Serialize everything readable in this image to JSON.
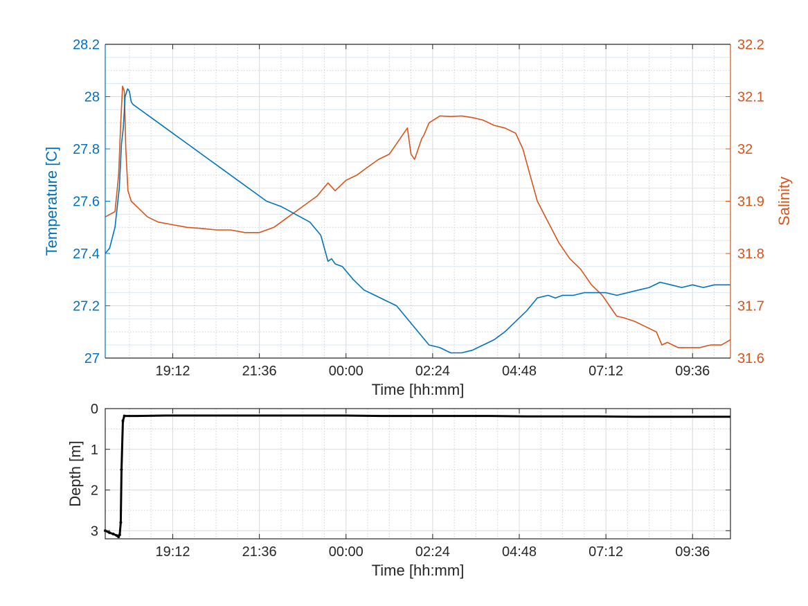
{
  "chart_data": [
    {
      "type": "line",
      "title": "",
      "xlabel": "Time [hh:mm]",
      "x_ticks": [
        "19:12",
        "21:36",
        "00:00",
        "02:24",
        "04:48",
        "07:12",
        "09:36"
      ],
      "x_range_hours": [
        17.33,
        34.65
      ],
      "x_tick_hours": [
        19.2,
        21.6,
        24.0,
        26.4,
        28.8,
        31.2,
        33.6
      ],
      "grid": true,
      "y_left": {
        "label": "Temperature [C]",
        "ylim": [
          27,
          28.2
        ],
        "ticks": [
          "27",
          "27.2",
          "27.4",
          "27.6",
          "27.8",
          "28",
          "28.2"
        ],
        "color": "#0072BD"
      },
      "y_right": {
        "label": "Salinity",
        "ylim": [
          31.6,
          32.2
        ],
        "ticks": [
          "31.6",
          "31.7",
          "31.8",
          "31.9",
          "32",
          "32.1",
          "32.2"
        ],
        "color": "#D95319"
      },
      "series": [
        {
          "axis": "left",
          "color": "#0072BD",
          "x": [
            17.33,
            17.45,
            17.6,
            17.72,
            17.78,
            17.83,
            17.88,
            17.95,
            18.0,
            18.05,
            18.1,
            18.3,
            18.6,
            19.0,
            19.4,
            19.8,
            20.2,
            20.6,
            21.0,
            21.4,
            21.8,
            22.2,
            22.6,
            23.0,
            23.3,
            23.4,
            23.5,
            23.6,
            23.7,
            23.9,
            24.2,
            24.5,
            24.8,
            25.1,
            25.4,
            25.7,
            26.0,
            26.3,
            26.6,
            26.9,
            27.2,
            27.5,
            27.8,
            28.1,
            28.4,
            28.7,
            29.0,
            29.3,
            29.6,
            29.8,
            30.0,
            30.3,
            30.6,
            30.9,
            31.2,
            31.5,
            31.8,
            32.1,
            32.4,
            32.7,
            33.0,
            33.3,
            33.6,
            33.9,
            34.2,
            34.65
          ],
          "y": [
            27.4,
            27.42,
            27.5,
            27.65,
            27.82,
            27.88,
            28.0,
            28.03,
            28.02,
            27.98,
            27.97,
            27.95,
            27.92,
            27.88,
            27.84,
            27.8,
            27.76,
            27.72,
            27.68,
            27.64,
            27.6,
            27.58,
            27.55,
            27.52,
            27.47,
            27.42,
            27.37,
            27.38,
            27.36,
            27.35,
            27.3,
            27.26,
            27.24,
            27.22,
            27.2,
            27.15,
            27.1,
            27.05,
            27.04,
            27.02,
            27.02,
            27.03,
            27.05,
            27.07,
            27.1,
            27.14,
            27.18,
            27.23,
            27.24,
            27.23,
            27.24,
            27.24,
            27.25,
            27.25,
            27.25,
            27.24,
            27.25,
            27.26,
            27.27,
            27.29,
            27.28,
            27.27,
            27.28,
            27.27,
            27.28,
            27.28
          ]
        },
        {
          "axis": "right",
          "color": "#D95319",
          "x": [
            17.33,
            17.6,
            17.7,
            17.76,
            17.81,
            17.86,
            17.9,
            17.96,
            18.05,
            18.2,
            18.5,
            18.8,
            19.2,
            19.6,
            20.0,
            20.4,
            20.8,
            21.2,
            21.6,
            22.0,
            22.4,
            22.8,
            23.2,
            23.5,
            23.7,
            24.0,
            24.3,
            24.6,
            24.9,
            25.2,
            25.5,
            25.7,
            25.8,
            25.9,
            26.0,
            26.1,
            26.15,
            26.3,
            26.6,
            26.9,
            27.2,
            27.5,
            27.8,
            28.1,
            28.4,
            28.7,
            28.9,
            29.1,
            29.3,
            29.6,
            29.9,
            30.2,
            30.5,
            30.8,
            31.1,
            31.3,
            31.5,
            31.7,
            32.0,
            32.3,
            32.6,
            32.75,
            32.9,
            33.2,
            33.5,
            33.8,
            34.1,
            34.4,
            34.65
          ],
          "y": [
            31.87,
            31.88,
            31.95,
            32.05,
            32.12,
            32.11,
            32.0,
            31.92,
            31.9,
            31.89,
            31.87,
            31.86,
            31.855,
            31.85,
            31.848,
            31.845,
            31.845,
            31.84,
            31.84,
            31.85,
            31.87,
            31.89,
            31.91,
            31.935,
            31.92,
            31.94,
            31.95,
            31.965,
            31.98,
            31.99,
            32.02,
            32.04,
            31.99,
            31.98,
            32.0,
            32.02,
            32.025,
            32.05,
            32.063,
            32.062,
            32.063,
            32.06,
            32.055,
            32.045,
            32.04,
            32.03,
            32.0,
            31.95,
            31.9,
            31.86,
            31.82,
            31.79,
            31.77,
            31.74,
            31.72,
            31.7,
            31.68,
            31.677,
            31.67,
            31.66,
            31.65,
            31.625,
            31.63,
            31.62,
            31.62,
            31.62,
            31.625,
            31.625,
            31.635
          ]
        }
      ]
    },
    {
      "type": "line",
      "title": "",
      "xlabel": "Time [hh:mm]",
      "ylabel": "Depth [m]",
      "x_ticks": [
        "19:12",
        "21:36",
        "00:00",
        "02:24",
        "04:48",
        "07:12",
        "09:36"
      ],
      "x_range_hours": [
        17.33,
        34.65
      ],
      "x_tick_hours": [
        19.2,
        21.6,
        24.0,
        26.4,
        28.8,
        31.2,
        33.6
      ],
      "ylim": [
        0,
        3.2
      ],
      "y_reversed": true,
      "y_ticks": [
        "0",
        "1",
        "2",
        "3"
      ],
      "grid": true,
      "series": [
        {
          "color": "#000000",
          "x": [
            17.33,
            17.45,
            17.55,
            17.65,
            17.7,
            17.73,
            17.76,
            17.78,
            17.82,
            17.86,
            18.2,
            19.0,
            20.0,
            21.0,
            22.0,
            23.0,
            24.0,
            25.0,
            26.0,
            27.0,
            28.0,
            29.0,
            30.0,
            31.0,
            32.0,
            33.0,
            34.0,
            34.65
          ],
          "y": [
            3.0,
            3.05,
            3.08,
            3.12,
            3.15,
            3.1,
            2.8,
            1.5,
            0.3,
            0.18,
            0.18,
            0.17,
            0.17,
            0.17,
            0.17,
            0.17,
            0.17,
            0.18,
            0.18,
            0.18,
            0.18,
            0.19,
            0.19,
            0.19,
            0.2,
            0.2,
            0.2,
            0.2
          ]
        }
      ]
    }
  ]
}
